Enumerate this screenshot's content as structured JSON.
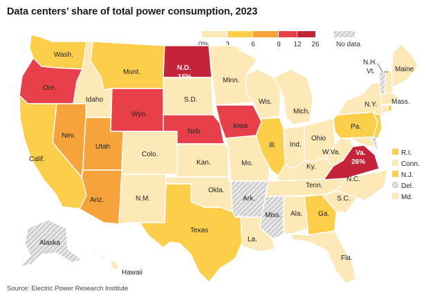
{
  "title": "Data centers’ share of total power consumption, 2023",
  "source": "Source: Electric Power Research Institute",
  "legend": {
    "bins": [
      {
        "label": "0%",
        "color": "#fde8b8"
      },
      {
        "label": "3",
        "color": "#fcce4a"
      },
      {
        "label": "6",
        "color": "#f5a33a"
      },
      {
        "label": "9",
        "color": "#e8404a"
      },
      {
        "label": "12",
        "color": "#d12a3a"
      },
      {
        "label": "26",
        "color": ""
      }
    ],
    "no_data_label": "No data"
  },
  "colors": {
    "bin1": "#fde8b8",
    "bin2": "#fcce4a",
    "bin3": "#f5a33a",
    "bin4": "#e8404a",
    "bin5": "#c4233a",
    "no_data": "#d8d8d8"
  },
  "states": {
    "wa": "Wash.",
    "or": "Ore.",
    "ca": "Calif.",
    "id": "Idaho",
    "nv": "Nev.",
    "mt": "Mont.",
    "wy": "Wyo.",
    "ut": "Utah",
    "az": "Ariz.",
    "co": "Colo.",
    "nm": "N.M.",
    "nd": "N.D.",
    "nd_value": "15%",
    "sd": "S.D.",
    "ne": "Neb.",
    "ks": "Kan.",
    "ok": "Okla.",
    "tx": "Texas",
    "mn": "Minn.",
    "ia": "Iowa",
    "mo": "Mo.",
    "ar": "Ark.",
    "la": "La.",
    "wi": "Wis.",
    "il": "Ill.",
    "mi": "Mich.",
    "in": "Ind.",
    "oh": "Ohio",
    "ky": "Ky.",
    "tn": "Tenn.",
    "ms": "Miss.",
    "al": "Ala.",
    "ga": "Ga.",
    "fl": "Fla.",
    "sc": "S.C.",
    "nc": "N.C.",
    "va": "Va.",
    "va_value": "26%",
    "wv": "W.Va.",
    "pa": "Pa.",
    "ny": "N.Y.",
    "vt": "Vt.",
    "nh": "N.H.",
    "me": "Maine",
    "ma": "Mass.",
    "ak": "Alaska",
    "hi": "Hawaii"
  },
  "small_states": [
    {
      "label": "R.I.",
      "color": "#fcce4a"
    },
    {
      "label": "Conn.",
      "color": "#fde8b8"
    },
    {
      "label": "N.J.",
      "color": "#fcce4a"
    },
    {
      "label": "Del.",
      "color": "nodata"
    },
    {
      "label": "Md.",
      "color": "#fde8b8"
    }
  ]
}
